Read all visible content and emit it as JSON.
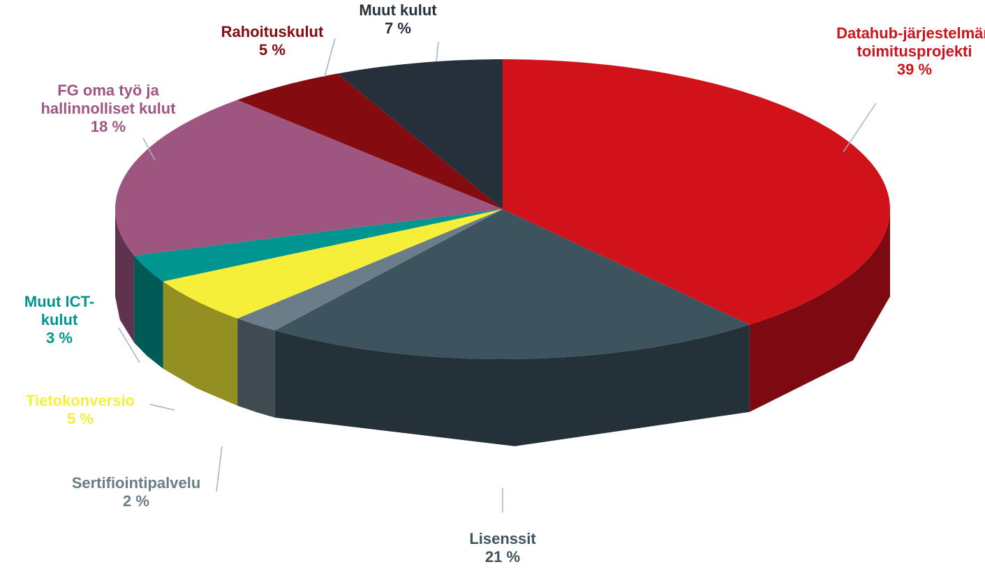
{
  "chart_data": {
    "type": "pie3d",
    "categories": [
      "Datahub-järjestelmän toimitusprojekti",
      "Lisenssit",
      "Sertifiointipalvelu",
      "Tietokonversio",
      "Muut ICT-kulut",
      "FG oma työ ja hallinnolliset kulut",
      "Rahoituskulut",
      "Muut kulut"
    ],
    "values": [
      39,
      21,
      2,
      5,
      3,
      18,
      5,
      7
    ],
    "value_labels": [
      "39 %",
      "21 %",
      "2 %",
      "5 %",
      "3 %",
      "18 %",
      "5 %",
      "7 %"
    ],
    "colors": [
      "#d0121b",
      "#3d535e",
      "#6a7d88",
      "#f5ef3a",
      "#00968f",
      "#9e5680",
      "#840c10",
      "#25303a"
    ]
  }
}
